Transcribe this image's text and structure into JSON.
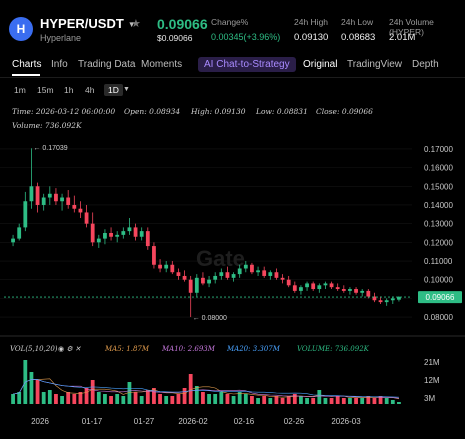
{
  "header": {
    "logo_letter": "H",
    "pair": "HYPER/USDT",
    "chain": "Hyperlane",
    "price": "0.09066",
    "price_usd": "$0.09066",
    "change_label": "Change%",
    "change_value": "0.00345(+3.96%)",
    "high_label": "24h High",
    "high_value": "0.09130",
    "low_label": "24h Low",
    "low_value": "0.08683",
    "volume_label": "24h Volume (HYPER)",
    "volume_value": "2.01M",
    "up_color": "#2ebd85",
    "down_color": "#f6465d"
  },
  "tabs": {
    "items": [
      "Charts",
      "Info",
      "Trading Data",
      "Moments"
    ],
    "ai": "AI Chat-to-Strategy",
    "right_items": [
      "Original",
      "TradingView",
      "Depth"
    ]
  },
  "intervals": [
    "1m",
    "15m",
    "1h",
    "4h",
    "1D"
  ],
  "legend": {
    "time": "Time: 2026-03-12 06:00:00",
    "open": "Open: 0.08934",
    "high": "High: 0.09130",
    "low": "Low: 0.08831",
    "close": "Close: 0.09066",
    "volume": "Volume: 736.092K"
  },
  "annotations": {
    "max": "← 0.17039",
    "min": "← 0.08000",
    "last_price": "0.09066",
    "watermark": "Gate"
  },
  "volume_legend": {
    "vol": "VOL(5,10,20)",
    "ma5": "MA5: 1.87M",
    "ma10": "MA10: 2.693M",
    "ma20": "MA20: 3.307M",
    "volume": "VOLUME: 736.092K"
  },
  "chart_data": {
    "type": "candlestick",
    "price_axis_ticks": [
      "0.17000",
      "0.16000",
      "0.15000",
      "0.14000",
      "0.13000",
      "0.12000",
      "0.11000",
      "0.10000",
      "0.09000",
      "0.08000"
    ],
    "volume_axis_ticks": [
      "21M",
      "12M",
      "3M"
    ],
    "x_tick_labels": [
      "2026",
      "01-17",
      "01-27",
      "2026-02",
      "02-16",
      "02-26",
      "2026-03"
    ],
    "ylim": [
      0.072,
      0.178
    ],
    "vol_max": 24,
    "candles": [
      [
        0.12,
        0.124,
        0.118,
        0.122,
        5
      ],
      [
        0.122,
        0.13,
        0.121,
        0.128,
        6
      ],
      [
        0.128,
        0.147,
        0.126,
        0.142,
        22
      ],
      [
        0.142,
        0.1704,
        0.138,
        0.15,
        16
      ],
      [
        0.15,
        0.152,
        0.136,
        0.14,
        12
      ],
      [
        0.14,
        0.146,
        0.137,
        0.144,
        6
      ],
      [
        0.144,
        0.15,
        0.14,
        0.146,
        7
      ],
      [
        0.146,
        0.149,
        0.14,
        0.142,
        5
      ],
      [
        0.142,
        0.146,
        0.137,
        0.144,
        4
      ],
      [
        0.144,
        0.148,
        0.138,
        0.14,
        6
      ],
      [
        0.14,
        0.145,
        0.136,
        0.138,
        5
      ],
      [
        0.138,
        0.142,
        0.133,
        0.136,
        6
      ],
      [
        0.136,
        0.14,
        0.128,
        0.13,
        8
      ],
      [
        0.13,
        0.136,
        0.118,
        0.12,
        12
      ],
      [
        0.12,
        0.124,
        0.117,
        0.122,
        6
      ],
      [
        0.122,
        0.127,
        0.119,
        0.125,
        5
      ],
      [
        0.125,
        0.128,
        0.121,
        0.123,
        4
      ],
      [
        0.123,
        0.126,
        0.12,
        0.124,
        5
      ],
      [
        0.124,
        0.128,
        0.122,
        0.126,
        4
      ],
      [
        0.126,
        0.133,
        0.124,
        0.128,
        11
      ],
      [
        0.128,
        0.13,
        0.121,
        0.123,
        6
      ],
      [
        0.123,
        0.128,
        0.121,
        0.126,
        4
      ],
      [
        0.126,
        0.128,
        0.116,
        0.118,
        7
      ],
      [
        0.118,
        0.12,
        0.106,
        0.108,
        8
      ],
      [
        0.108,
        0.111,
        0.104,
        0.106,
        5
      ],
      [
        0.106,
        0.11,
        0.104,
        0.108,
        4
      ],
      [
        0.108,
        0.11,
        0.103,
        0.104,
        4
      ],
      [
        0.104,
        0.106,
        0.1,
        0.102,
        5
      ],
      [
        0.102,
        0.105,
        0.099,
        0.1,
        8
      ],
      [
        0.1,
        0.102,
        0.08,
        0.093,
        15
      ],
      [
        0.093,
        0.103,
        0.091,
        0.101,
        9
      ],
      [
        0.101,
        0.104,
        0.097,
        0.098,
        6
      ],
      [
        0.098,
        0.102,
        0.096,
        0.1,
        5
      ],
      [
        0.1,
        0.104,
        0.098,
        0.102,
        5
      ],
      [
        0.102,
        0.106,
        0.1,
        0.104,
        6
      ],
      [
        0.104,
        0.107,
        0.1,
        0.101,
        5
      ],
      [
        0.101,
        0.104,
        0.099,
        0.103,
        4
      ],
      [
        0.103,
        0.108,
        0.101,
        0.106,
        6
      ],
      [
        0.106,
        0.11,
        0.104,
        0.108,
        5
      ],
      [
        0.108,
        0.109,
        0.103,
        0.104,
        4
      ],
      [
        0.104,
        0.107,
        0.102,
        0.105,
        3
      ],
      [
        0.105,
        0.107,
        0.101,
        0.102,
        4
      ],
      [
        0.102,
        0.105,
        0.1,
        0.104,
        3
      ],
      [
        0.104,
        0.106,
        0.1,
        0.101,
        4
      ],
      [
        0.101,
        0.103,
        0.098,
        0.1,
        3
      ],
      [
        0.1,
        0.102,
        0.096,
        0.097,
        4
      ],
      [
        0.097,
        0.099,
        0.093,
        0.094,
        5
      ],
      [
        0.094,
        0.097,
        0.092,
        0.096,
        4
      ],
      [
        0.096,
        0.099,
        0.094,
        0.098,
        3
      ],
      [
        0.098,
        0.099,
        0.094,
        0.095,
        3
      ],
      [
        0.095,
        0.098,
        0.093,
        0.097,
        7
      ],
      [
        0.097,
        0.099,
        0.095,
        0.098,
        3
      ],
      [
        0.098,
        0.099,
        0.095,
        0.096,
        3
      ],
      [
        0.096,
        0.098,
        0.094,
        0.095,
        4
      ],
      [
        0.095,
        0.097,
        0.093,
        0.094,
        3
      ],
      [
        0.094,
        0.096,
        0.092,
        0.095,
        3
      ],
      [
        0.095,
        0.096,
        0.092,
        0.093,
        3
      ],
      [
        0.093,
        0.095,
        0.091,
        0.094,
        3
      ],
      [
        0.094,
        0.095,
        0.09,
        0.091,
        4
      ],
      [
        0.091,
        0.093,
        0.088,
        0.089,
        3
      ],
      [
        0.089,
        0.091,
        0.087,
        0.088,
        4
      ],
      [
        0.088,
        0.09,
        0.086,
        0.089,
        3
      ],
      [
        0.089,
        0.091,
        0.087,
        0.09,
        2
      ],
      [
        0.0893,
        0.0913,
        0.0883,
        0.0907,
        1
      ]
    ]
  }
}
